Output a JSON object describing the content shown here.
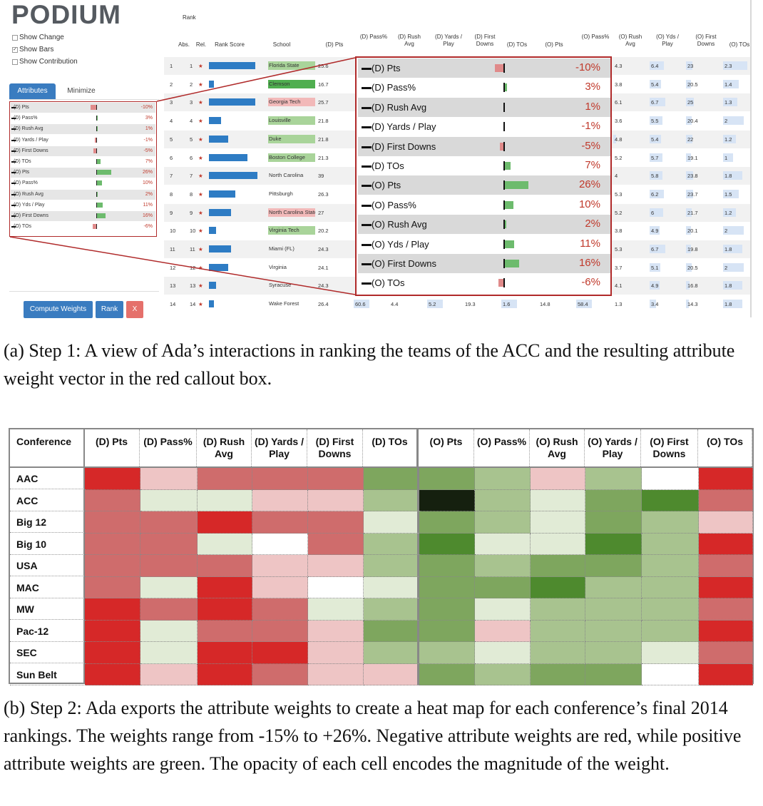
{
  "app": {
    "logo": "PODIUM",
    "options": [
      "Show Change",
      "Show Bars",
      "Show Contribution"
    ],
    "checked": [
      false,
      true,
      false
    ],
    "tabs": [
      "Attributes",
      "Minimize"
    ],
    "buttons": {
      "compute": "Compute Weights",
      "rank": "Rank",
      "close": "X"
    },
    "colors": {
      "accent_blue": "#3a7cc0",
      "close_red": "#e5706b",
      "neg_red": "#d62728",
      "pos_green": "#4e8a2e"
    }
  },
  "weights": [
    {
      "label": "(D) Pts",
      "value": "-10%",
      "w": -10
    },
    {
      "label": "(D) Pass%",
      "value": "3%",
      "w": 3
    },
    {
      "label": "(D) Rush Avg",
      "value": "1%",
      "w": 1
    },
    {
      "label": "(D) Yards / Play",
      "value": "-1%",
      "w": -1
    },
    {
      "label": "(D) First Downs",
      "value": "-5%",
      "w": -5
    },
    {
      "label": "(D) TOs",
      "value": "7%",
      "w": 7
    },
    {
      "label": "(O) Pts",
      "value": "26%",
      "w": 26
    },
    {
      "label": "(O) Pass%",
      "value": "10%",
      "w": 10
    },
    {
      "label": "(O) Rush Avg",
      "value": "2%",
      "w": 2
    },
    {
      "label": "(O) Yds / Play",
      "value": "11%",
      "w": 11
    },
    {
      "label": "(O) First Downs",
      "value": "16%",
      "w": 16
    },
    {
      "label": "(O) TOs",
      "value": "-6%",
      "w": -6
    }
  ],
  "sidebar_labels": [
    "(D) Pts",
    "(D) Pass%",
    "(D) Rush Avg",
    "(D) Yards / Play",
    "(D) First Downs",
    "(D) TOs",
    "(O) Pts",
    "(O) Pass%",
    "(O) Rush Avg",
    "(O) Yds / Play",
    "(O) First Downs",
    "(O) TOs"
  ],
  "table": {
    "rank_header": "Rank",
    "headers": [
      "Abs.",
      "Rel.",
      "Rank Score",
      "School",
      "(D) Pts",
      "(D) Pass%",
      "(D) Rush Avg",
      "(D) Yards / Play",
      "(D) First Downs",
      "(D) TOs",
      "(O) Pts",
      "(O) Pass%",
      "(O) Rush Avg",
      "(O) Yds / Play",
      "(O) First Downs",
      "(O) TOs"
    ],
    "rows": [
      {
        "abs": "1",
        "rel": "1",
        "score": 0.95,
        "school": "Florida State",
        "dpts": "25.6",
        "hl": "#a9d49a",
        "right": [
          "4.3",
          "6.4",
          "23",
          "2.3"
        ],
        "rw": [
          0,
          0.55,
          0.25,
          0.95
        ]
      },
      {
        "abs": "2",
        "rel": "2",
        "score": 0.1,
        "school": "Clemson",
        "dpts": "16.7",
        "hl": "#4fae4f",
        "right": [
          "3.8",
          "5.4",
          "20.5",
          "1.4"
        ],
        "rw": [
          0,
          0.45,
          0.2,
          0.6
        ]
      },
      {
        "abs": "3",
        "rel": "3",
        "score": 0.95,
        "school": "Georgia Tech",
        "dpts": "25.7",
        "hl": "#f2b9b9",
        "right": [
          "6.1",
          "6.7",
          "25",
          "1.3"
        ],
        "rw": [
          0,
          0.6,
          0.3,
          0.55
        ]
      },
      {
        "abs": "4",
        "rel": "4",
        "score": 0.25,
        "school": "Louisville",
        "dpts": "21.8",
        "hl": "#a9d49a",
        "right": [
          "3.6",
          "5.5",
          "20.4",
          "2"
        ],
        "rw": [
          0,
          0.5,
          0.22,
          0.8
        ]
      },
      {
        "abs": "5",
        "rel": "5",
        "score": 0.4,
        "school": "Duke",
        "dpts": "21.8",
        "hl": "#a9d49a",
        "right": [
          "4.8",
          "5.4",
          "22",
          "1.2"
        ],
        "rw": [
          0.1,
          0.45,
          0.25,
          0.5
        ]
      },
      {
        "abs": "6",
        "rel": "6",
        "score": 0.8,
        "school": "Boston College",
        "dpts": "21.3",
        "hl": "#a9d49a",
        "right": [
          "5.2",
          "5.7",
          "19.1",
          "1"
        ],
        "rw": [
          0,
          0.5,
          0.2,
          0.4
        ]
      },
      {
        "abs": "7",
        "rel": "7",
        "score": 1.0,
        "school": "North Carolina",
        "dpts": "39",
        "hl": "",
        "right": [
          "4",
          "5.8",
          "23.8",
          "1.8"
        ],
        "rw": [
          0,
          0.5,
          0.28,
          0.75
        ]
      },
      {
        "abs": "8",
        "rel": "8",
        "score": 0.55,
        "school": "Pittsburgh",
        "dpts": "26.3",
        "hl": "",
        "right": [
          "5.3",
          "6.2",
          "23.7",
          "1.5"
        ],
        "rw": [
          0,
          0.55,
          0.27,
          0.62
        ]
      },
      {
        "abs": "9",
        "rel": "9",
        "score": 0.45,
        "school": "North Carolina State",
        "dpts": "27",
        "hl": "#f2b9b9",
        "right": [
          "5.2",
          "6",
          "21.7",
          "1.2"
        ],
        "rw": [
          0,
          0.52,
          0.23,
          0.5
        ]
      },
      {
        "abs": "10",
        "rel": "10",
        "score": 0.15,
        "school": "Virginia Tech",
        "dpts": "20.2",
        "hl": "#a9d49a",
        "right": [
          "3.8",
          "4.9",
          "20.1",
          "2"
        ],
        "rw": [
          0,
          0.4,
          0.2,
          0.8
        ]
      },
      {
        "abs": "11",
        "rel": "11",
        "score": 0.45,
        "school": "Miami (FL)",
        "dpts": "24.3",
        "hl": "",
        "right": [
          "5.3",
          "6.7",
          "19.8",
          "1.8"
        ],
        "rw": [
          0,
          0.6,
          0.2,
          0.75
        ]
      },
      {
        "abs": "12",
        "rel": "12",
        "score": 0.4,
        "school": "Virginia",
        "dpts": "24.1",
        "hl": "",
        "right": [
          "3.7",
          "5.1",
          "20.5",
          "2"
        ],
        "rw": [
          0,
          0.42,
          0.21,
          0.8
        ]
      },
      {
        "abs": "13",
        "rel": "13",
        "score": 0.15,
        "school": "Syracuse",
        "dpts": "24.3",
        "hl": "",
        "right": [
          "4.1",
          "4.9",
          "16.8",
          "1.8"
        ],
        "rw": [
          0,
          0.4,
          0.15,
          0.75
        ]
      },
      {
        "abs": "14",
        "rel": "14",
        "score": 0.1,
        "school": "Wake Forest",
        "dpts": "26.4",
        "hl": "",
        "right": [
          "1.3",
          "3.4",
          "14.3",
          "1.8"
        ],
        "rw": [
          0,
          0.25,
          0.12,
          0.75
        ]
      }
    ],
    "wake_extra": [
      "60.6",
      "4.4",
      "5.2",
      "19.3",
      "1.6",
      "14.8",
      "58.4"
    ]
  },
  "captions": {
    "a": "(a) Step 1: A view of Ada’s interactions in ranking the teams of the ACC and the resulting attribute weight vector in the red callout box.",
    "b": "(b) Step 2: Ada exports the attribute weights to create a heat map for each conference’s final 2014 rankings. The weights range from -15% to +26%. Negative attribute weights are red, while positive attribute weights are green. The opacity of each cell encodes the magnitude of the weight."
  },
  "chart_data": {
    "type": "heatmap",
    "title": "",
    "corner_label": "Conference",
    "columns": [
      "(D) Pts",
      "(D) Pass%",
      "(D) Rush Avg",
      "(D) Yards / Play",
      "(D) First Downs",
      "(D) TOs",
      "(O) Pts",
      "(O) Pass%",
      "(O) Rush Avg",
      "(O) Yards / Play",
      "(O) First Downs",
      "(O) TOs"
    ],
    "rows": [
      "AAC",
      "ACC",
      "Big 12",
      "Big 10",
      "USA",
      "MAC",
      "MW",
      "Pac-12",
      "SEC",
      "Sun Belt"
    ],
    "value_range": [
      -15,
      26
    ],
    "values": [
      [
        -15,
        -4,
        -10,
        -10,
        -10,
        10,
        10,
        7,
        -4,
        7,
        0,
        -15
      ],
      [
        -10,
        2,
        2,
        -4,
        -4,
        7,
        26,
        7,
        2,
        10,
        16,
        -10
      ],
      [
        -10,
        -10,
        -15,
        -10,
        -10,
        2,
        10,
        7,
        2,
        10,
        7,
        -4
      ],
      [
        -10,
        -10,
        2,
        0,
        -10,
        7,
        16,
        2,
        2,
        16,
        7,
        -15
      ],
      [
        -10,
        -10,
        -10,
        -4,
        -4,
        7,
        10,
        7,
        10,
        10,
        7,
        -10
      ],
      [
        -10,
        2,
        -15,
        -4,
        0,
        2,
        10,
        10,
        16,
        7,
        7,
        -15
      ],
      [
        -15,
        -10,
        -15,
        -10,
        2,
        7,
        10,
        2,
        7,
        7,
        7,
        -10
      ],
      [
        -15,
        2,
        -10,
        -10,
        -4,
        10,
        10,
        -4,
        7,
        7,
        7,
        -15
      ],
      [
        -15,
        2,
        -15,
        -15,
        -4,
        7,
        7,
        2,
        7,
        7,
        2,
        -10
      ],
      [
        -15,
        -4,
        -15,
        -10,
        -4,
        -4,
        10,
        7,
        10,
        10,
        0,
        -15
      ]
    ]
  }
}
